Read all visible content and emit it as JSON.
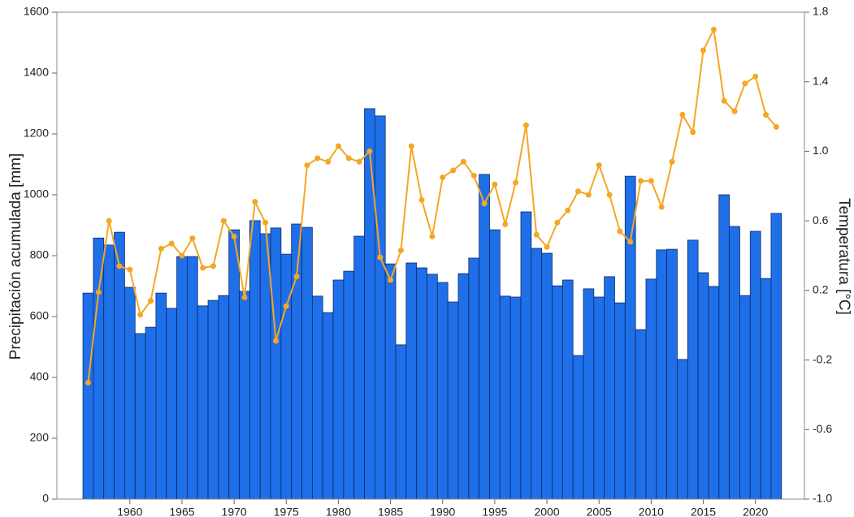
{
  "chart_data": {
    "type": "bar-line",
    "x": [
      1956,
      1957,
      1958,
      1959,
      1960,
      1961,
      1962,
      1963,
      1964,
      1965,
      1966,
      1967,
      1968,
      1969,
      1970,
      1971,
      1972,
      1973,
      1974,
      1975,
      1976,
      1977,
      1978,
      1979,
      1980,
      1981,
      1982,
      1983,
      1984,
      1985,
      1986,
      1987,
      1988,
      1989,
      1990,
      1991,
      1992,
      1993,
      1994,
      1995,
      1996,
      1997,
      1998,
      1999,
      2000,
      2001,
      2002,
      2003,
      2004,
      2005,
      2006,
      2007,
      2008,
      2009,
      2010,
      2011,
      2012,
      2013,
      2014,
      2015,
      2016,
      2017,
      2018,
      2019,
      2020,
      2021,
      2022
    ],
    "series": [
      {
        "type": "bar",
        "color": "#1f6fe8",
        "values": [
          677,
          858,
          835,
          877,
          696,
          544,
          565,
          677,
          627,
          797,
          797,
          635,
          653,
          669,
          885,
          683,
          915,
          872,
          891,
          805,
          904,
          893,
          667,
          613,
          720,
          749,
          864,
          1283,
          1259,
          773,
          507,
          776,
          760,
          739,
          712,
          648,
          741,
          792,
          1067,
          885,
          667,
          664,
          944,
          824,
          808,
          701,
          720,
          472,
          691,
          664,
          731,
          645,
          1061,
          557,
          723,
          819,
          821,
          459,
          851,
          744,
          699,
          1000,
          896,
          669,
          880,
          725,
          939
        ]
      },
      {
        "type": "line",
        "axis": "y2",
        "color": "#f5a623",
        "values": [
          -0.33,
          0.19,
          0.6,
          0.34,
          0.32,
          0.06,
          0.14,
          0.44,
          0.47,
          0.4,
          0.5,
          0.33,
          0.34,
          0.6,
          0.51,
          0.16,
          0.71,
          0.59,
          -0.09,
          0.11,
          0.28,
          0.92,
          0.96,
          0.94,
          1.03,
          0.96,
          0.94,
          1.0,
          0.39,
          0.26,
          0.43,
          1.03,
          0.72,
          0.51,
          0.85,
          0.89,
          0.94,
          0.86,
          0.7,
          0.81,
          0.58,
          0.82,
          1.15,
          0.52,
          0.45,
          0.59,
          0.66,
          0.77,
          0.75,
          0.92,
          0.75,
          0.54,
          0.48,
          0.83,
          0.83,
          0.68,
          0.94,
          1.21,
          1.11,
          1.58,
          1.7,
          1.29,
          1.23,
          1.39,
          1.43,
          1.21,
          1.14
        ]
      }
    ],
    "xlim": [
      1953,
      2024.7
    ],
    "xticks": [
      1960,
      1965,
      1970,
      1975,
      1980,
      1985,
      1990,
      1995,
      2000,
      2005,
      2010,
      2015,
      2020
    ],
    "ylabel": "Precipitación acumulada [mm]",
    "ylim": [
      0,
      1600
    ],
    "yticks": [
      0,
      200,
      400,
      600,
      800,
      1000,
      1200,
      1400,
      1600
    ],
    "y2label": "Temperatura [°C]",
    "y2lim": [
      -1.0,
      1.8
    ],
    "y2ticks": [
      {
        "value": -1.0,
        "label": "-1.0"
      },
      -0.6,
      -0.2,
      0.2,
      0.6,
      {
        "value": 1.0,
        "label": "1.0"
      },
      1.4,
      1.8
    ]
  }
}
